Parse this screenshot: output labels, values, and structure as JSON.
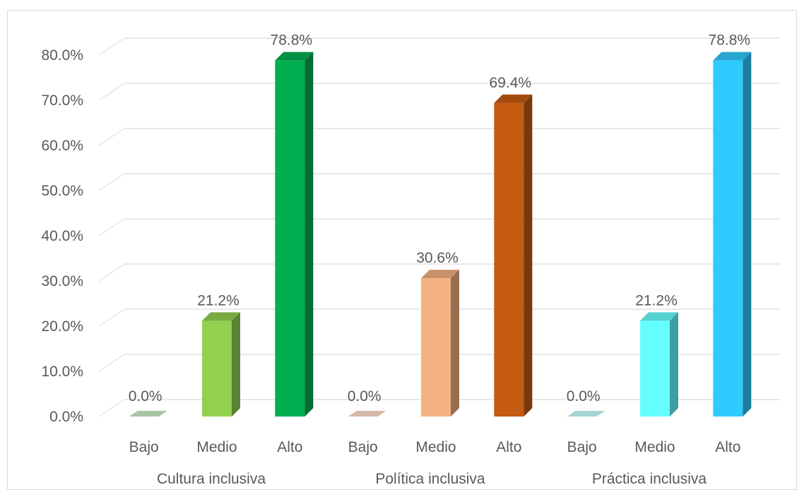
{
  "chart_data": {
    "type": "bar",
    "title": "",
    "ylim": [
      0,
      80
    ],
    "yticks": [
      0,
      10,
      20,
      30,
      40,
      50,
      60,
      70,
      80
    ],
    "ytick_labels": [
      "0.0%",
      "10.0%",
      "20.0%",
      "30.0%",
      "40.0%",
      "50.0%",
      "60.0%",
      "70.0%",
      "80.0%"
    ],
    "grid": true,
    "style": "3d-column",
    "groups": [
      {
        "label": "Cultura inclusiva",
        "bars": [
          {
            "category": "Bajo",
            "value": 0.0,
            "label": "0.0%",
            "color": "#a9c4a4"
          },
          {
            "category": "Medio",
            "value": 21.2,
            "label": "21.2%",
            "color": "#92d050"
          },
          {
            "category": "Alto",
            "value": 78.8,
            "label": "78.8%",
            "color": "#00b050"
          }
        ]
      },
      {
        "label": "Política inclusiva",
        "bars": [
          {
            "category": "Bajo",
            "value": 0.0,
            "label": "0.0%",
            "color": "#d4b8a8"
          },
          {
            "category": "Medio",
            "value": 30.6,
            "label": "30.6%",
            "color": "#f4b183"
          },
          {
            "category": "Alto",
            "value": 69.4,
            "label": "69.4%",
            "color": "#c55a11"
          }
        ]
      },
      {
        "label": "Práctica inclusiva",
        "bars": [
          {
            "category": "Bajo",
            "value": 0.0,
            "label": "0.0%",
            "color": "#a7d3d3"
          },
          {
            "category": "Medio",
            "value": 21.2,
            "label": "21.2%",
            "color": "#66ffff"
          },
          {
            "category": "Alto",
            "value": 78.8,
            "label": "78.8%",
            "color": "#2ecbff"
          }
        ]
      }
    ]
  }
}
